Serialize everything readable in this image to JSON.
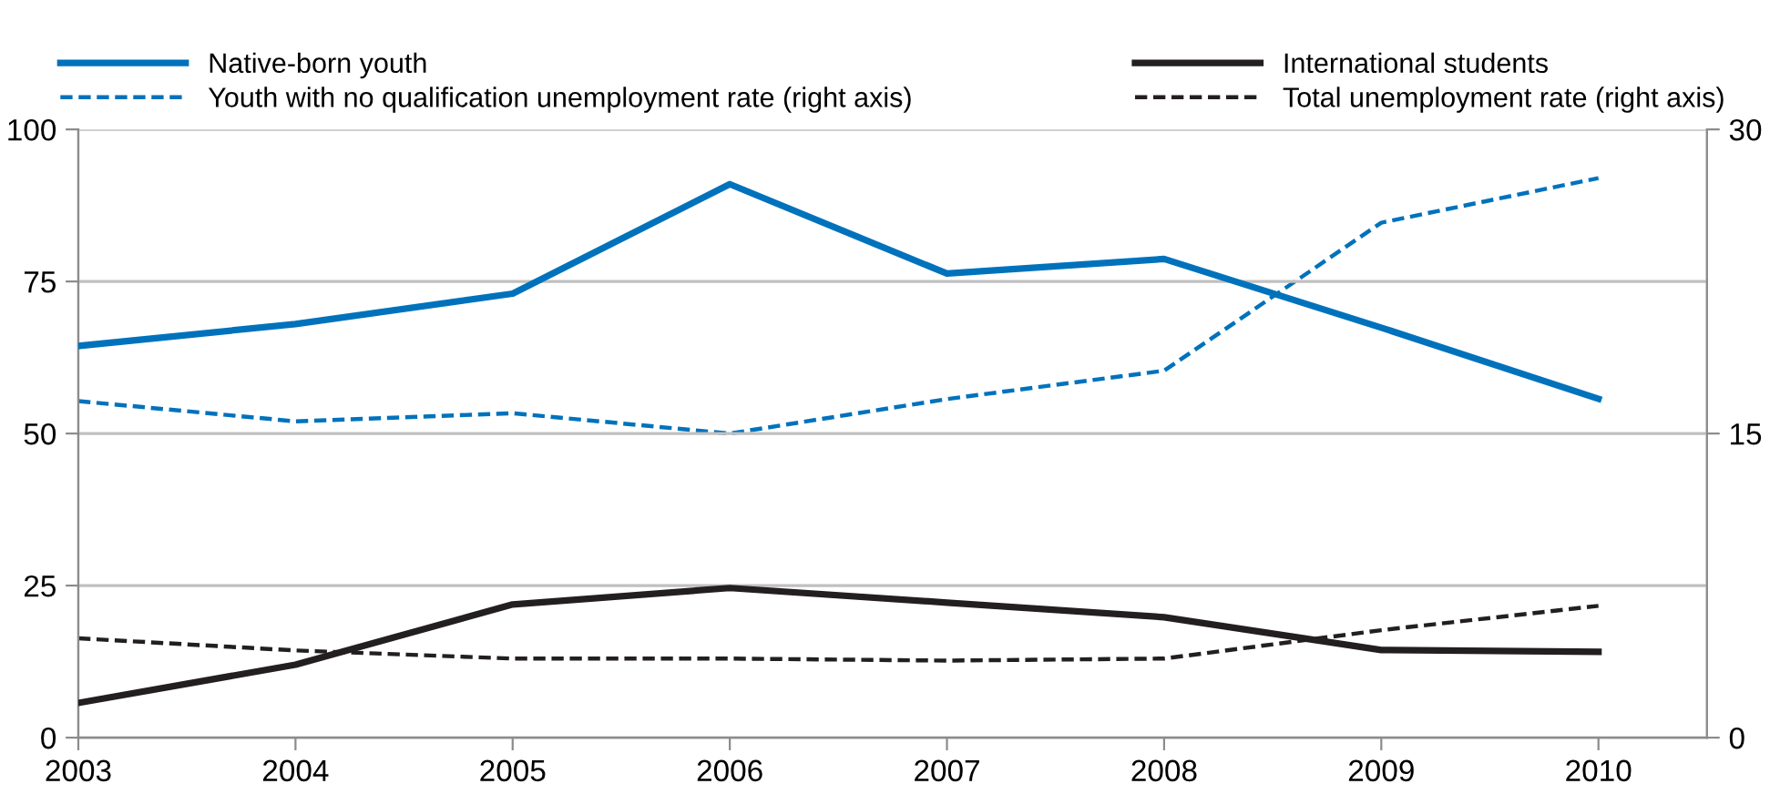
{
  "chart_data": {
    "type": "line",
    "x": [
      2003,
      2004,
      2005,
      2006,
      2007,
      2008,
      2009,
      2010
    ],
    "xlim": [
      2003,
      2010.5
    ],
    "xticks": [
      2003,
      2004,
      2005,
      2006,
      2007,
      2008,
      2009,
      2010
    ],
    "ylim": [
      0,
      100
    ],
    "yticks": [
      0,
      25,
      50,
      75,
      100
    ],
    "y2lim": [
      0,
      30
    ],
    "y2ticks": [
      0,
      15,
      30
    ],
    "grid": "y",
    "legend": "top",
    "marker": "none",
    "series": [
      {
        "name": "Native-born youth",
        "color": "#0072bc",
        "line_style": "solid",
        "values": [
          64.4,
          68,
          73,
          91,
          76.3,
          78.7,
          67.4,
          55.7
        ]
      },
      {
        "name": "International students",
        "color": "#231f20",
        "line_style": "solid",
        "values": [
          5.7,
          12,
          21.9,
          24.6,
          22.2,
          19.8,
          14.4,
          14.1
        ]
      },
      {
        "name": "Youth with no qualification unemployment rate (right axis)",
        "color": "#0072bc",
        "line_style": "dashed",
        "axis": "y2",
        "values": [
          16.6,
          15.6,
          16.0,
          15.0,
          16.7,
          18.1,
          25.4,
          27.6
        ]
      },
      {
        "name": "Total unemployment rate (right axis)",
        "color": "#231f20",
        "line_style": "dashed",
        "axis": "y2",
        "values": [
          4.9,
          4.3,
          3.9,
          3.9,
          3.8,
          3.9,
          5.3,
          6.5
        ]
      }
    ]
  }
}
